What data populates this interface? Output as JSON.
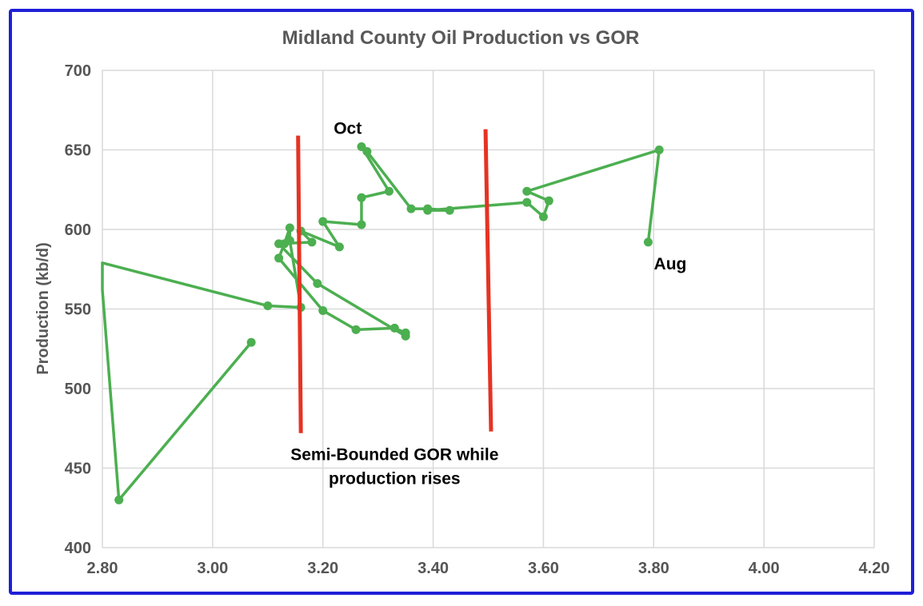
{
  "chart_data": {
    "type": "line",
    "title": "Midland County Oil Production vs GOR",
    "xlabel": "",
    "ylabel": "Production (kb/d)",
    "xlim": [
      2.8,
      4.2
    ],
    "ylim": [
      400,
      700
    ],
    "x_ticks": [
      "2.80",
      "3.00",
      "3.20",
      "3.40",
      "3.60",
      "3.80",
      "4.00",
      "4.20"
    ],
    "y_ticks": [
      "400",
      "450",
      "500",
      "550",
      "600",
      "650",
      "700"
    ],
    "grid": true,
    "series": [
      {
        "color": "#4caf50",
        "points": [
          [
            3.07,
            529
          ],
          [
            2.83,
            430
          ],
          [
            2.8,
            562
          ],
          [
            2.8,
            579
          ],
          [
            3.1,
            552
          ],
          [
            3.16,
            551
          ],
          [
            3.14,
            593
          ],
          [
            3.14,
            601
          ],
          [
            3.13,
            591
          ],
          [
            3.12,
            582
          ],
          [
            3.2,
            549
          ],
          [
            3.26,
            537
          ],
          [
            3.33,
            538
          ],
          [
            3.35,
            535
          ],
          [
            3.35,
            533
          ],
          [
            3.19,
            566
          ],
          [
            3.12,
            591
          ],
          [
            3.18,
            592
          ],
          [
            3.16,
            599
          ],
          [
            3.23,
            589
          ],
          [
            3.2,
            605
          ],
          [
            3.27,
            603
          ],
          [
            3.27,
            620
          ],
          [
            3.32,
            624
          ],
          [
            3.27,
            652
          ],
          [
            3.28,
            649
          ],
          [
            3.36,
            613
          ],
          [
            3.39,
            613
          ],
          [
            3.43,
            612
          ],
          [
            3.39,
            612
          ],
          [
            3.57,
            617
          ],
          [
            3.6,
            608
          ],
          [
            3.61,
            618
          ],
          [
            3.57,
            624
          ],
          [
            3.81,
            650
          ],
          [
            3.79,
            592
          ]
        ]
      }
    ],
    "markers": [
      {
        "color": "#e53323",
        "x1": 3.155,
        "y1": 659,
        "x2": 3.16,
        "y2": 472
      },
      {
        "color": "#e53323",
        "x1": 3.495,
        "y1": 663,
        "x2": 3.505,
        "y2": 473
      }
    ],
    "annotations": [
      {
        "text": "Oct",
        "x": 3.245,
        "y": 660
      },
      {
        "text": "Aug",
        "x": 3.83,
        "y": 575
      },
      {
        "text": "Semi-Bounded GOR while",
        "x": 3.33,
        "y": 455
      },
      {
        "text": "production rises",
        "x": 3.33,
        "y": 440
      }
    ]
  }
}
